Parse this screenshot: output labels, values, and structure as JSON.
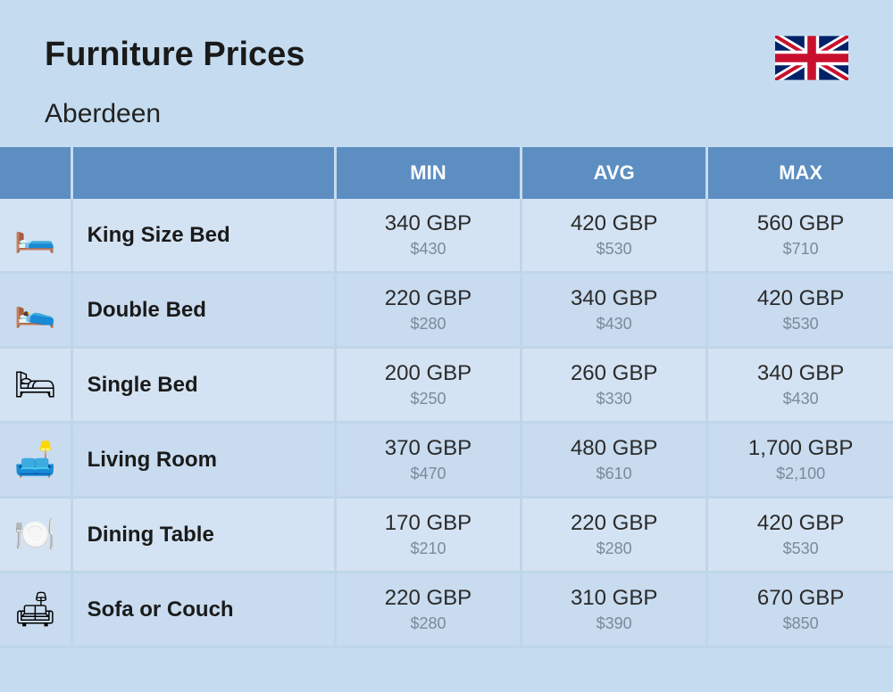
{
  "header": {
    "title": "Furniture Prices",
    "subtitle": "Aberdeen"
  },
  "columns": [
    "MIN",
    "AVG",
    "MAX"
  ],
  "rows": [
    {
      "icon": "🛏️",
      "name": "King Size Bed",
      "min_gbp": "340 GBP",
      "min_usd": "$430",
      "avg_gbp": "420 GBP",
      "avg_usd": "$530",
      "max_gbp": "560 GBP",
      "max_usd": "$710"
    },
    {
      "icon": "🛌",
      "name": "Double Bed",
      "min_gbp": "220 GBP",
      "min_usd": "$280",
      "avg_gbp": "340 GBP",
      "avg_usd": "$430",
      "max_gbp": "420 GBP",
      "max_usd": "$530"
    },
    {
      "icon": "🛏",
      "name": "Single Bed",
      "min_gbp": "200 GBP",
      "min_usd": "$250",
      "avg_gbp": "260 GBP",
      "avg_usd": "$330",
      "max_gbp": "340 GBP",
      "max_usd": "$430"
    },
    {
      "icon": "🛋️",
      "name": "Living Room",
      "min_gbp": "370 GBP",
      "min_usd": "$470",
      "avg_gbp": "480 GBP",
      "avg_usd": "$610",
      "max_gbp": "1,700 GBP",
      "max_usd": "$2,100"
    },
    {
      "icon": "🍽️",
      "name": "Dining Table",
      "min_gbp": "170 GBP",
      "min_usd": "$210",
      "avg_gbp": "220 GBP",
      "avg_usd": "$280",
      "max_gbp": "420 GBP",
      "max_usd": "$530"
    },
    {
      "icon": "🛋",
      "name": "Sofa or Couch",
      "min_gbp": "220 GBP",
      "min_usd": "$280",
      "avg_gbp": "310 GBP",
      "avg_usd": "$390",
      "max_gbp": "670 GBP",
      "max_usd": "$850"
    }
  ],
  "colors": {
    "page_bg": "#c5dcf0",
    "header_bg": "#5c8ec2",
    "header_text": "#ffffff",
    "row_odd": "#d4e3f3",
    "row_even": "#c8dbef",
    "text_main": "#1a1a1a",
    "text_sub": "#7a8a9a",
    "border": "#bfd6ea"
  }
}
